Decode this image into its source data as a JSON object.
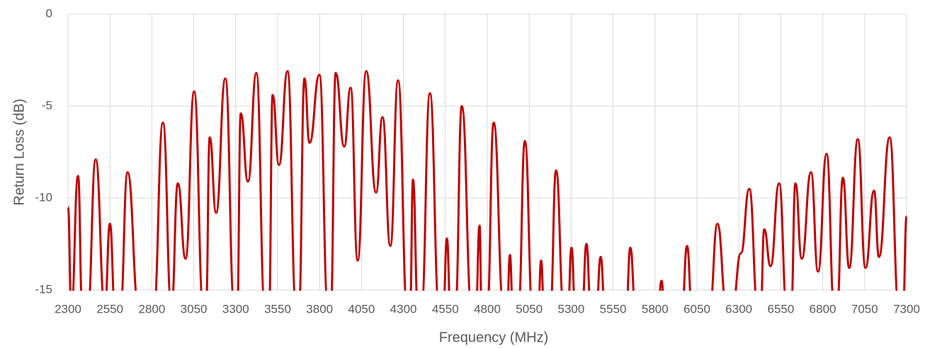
{
  "chart_data": {
    "type": "line",
    "x_label": "Frequency (MHz)",
    "y_label": "Return Loss (dB)",
    "color": "#c00000",
    "grid": true,
    "xlim": [
      2300,
      7300
    ],
    "xticks": [
      2300,
      2550,
      2800,
      3050,
      3300,
      3550,
      3800,
      4050,
      4300,
      4550,
      4800,
      5050,
      5300,
      5550,
      5800,
      6050,
      6300,
      6550,
      6800,
      7050,
      7300
    ],
    "ylim": [
      -15,
      0
    ],
    "yticks": [
      0,
      -5,
      -10,
      -15
    ],
    "x": [
      2300,
      2320,
      2360,
      2385,
      2418,
      2465,
      2520,
      2550,
      2580,
      2612,
      2655,
      2722,
      2811,
      2866,
      2917,
      2955,
      3001,
      3052,
      3107,
      3123,
      3145,
      3183,
      3238,
      3292,
      3309,
      3330,
      3373,
      3423,
      3474,
      3499,
      3520,
      3558,
      3609,
      3660,
      3677,
      3710,
      3740,
      3799,
      3850,
      3867,
      3896,
      3947,
      3985,
      4027,
      4078,
      4137,
      4175,
      4222,
      4268,
      4323,
      4340,
      4357,
      4386,
      4407,
      4458,
      4513,
      4538,
      4559,
      4580,
      4610,
      4648,
      4707,
      4732,
      4754,
      4766,
      4800,
      4838,
      4897,
      4918,
      4935,
      4952,
      4986,
      5024,
      5070,
      5104,
      5121,
      5138,
      5176,
      5210,
      5256,
      5281,
      5302,
      5324,
      5366,
      5391,
      5417,
      5450,
      5476,
      5501,
      5628,
      5653,
      5683,
      5818,
      5839,
      5856,
      5961,
      5991,
      6020,
      6126,
      6172,
      6227,
      6261,
      6312,
      6362,
      6413,
      6430,
      6451,
      6489,
      6540,
      6586,
      6612,
      6637,
      6675,
      6730,
      6772,
      6823,
      6869,
      6886,
      6920,
      6958,
      7009,
      7055,
      7106,
      7135,
      7199,
      7254,
      7279,
      7300
    ],
    "values": [
      -10.5,
      -16,
      -8.8,
      -16,
      -16,
      -7.9,
      -16,
      -11.4,
      -16,
      -16,
      -8.6,
      -16,
      -16,
      -5.9,
      -16,
      -9.2,
      -13.3,
      -4.2,
      -16,
      -16,
      -6.7,
      -10.8,
      -3.5,
      -16,
      -16,
      -5.4,
      -9.1,
      -3.2,
      -16,
      -16,
      -4.4,
      -8.2,
      -3.1,
      -16,
      -16,
      -3.5,
      -7.0,
      -3.3,
      -16,
      -16,
      -3.2,
      -7.2,
      -4.0,
      -13.4,
      -3.1,
      -9.7,
      -5.6,
      -12.6,
      -3.6,
      -16,
      -16,
      -9.0,
      -16,
      -16,
      -4.3,
      -16,
      -16,
      -12.2,
      -16,
      -16,
      -5.0,
      -16,
      -16,
      -11.5,
      -16,
      -16,
      -5.9,
      -16,
      -16,
      -13.1,
      -16,
      -16,
      -6.9,
      -16,
      -16,
      -13.4,
      -16,
      -16,
      -8.5,
      -16,
      -16,
      -12.7,
      -16,
      -16,
      -12.5,
      -16,
      -16,
      -13.2,
      -16,
      -16,
      -12.7,
      -16,
      -16,
      -14.5,
      -16,
      -16,
      -12.6,
      -16,
      -16,
      -11.4,
      -16,
      -16,
      -13,
      -9.5,
      -16,
      -16,
      -11.7,
      -13.7,
      -9.2,
      -16,
      -16,
      -9.2,
      -13.3,
      -8.6,
      -14.0,
      -7.6,
      -16,
      -16,
      -8.9,
      -13.8,
      -6.8,
      -13.8,
      -9.6,
      -13.2,
      -6.7,
      -16,
      -16,
      -11.0
    ]
  }
}
